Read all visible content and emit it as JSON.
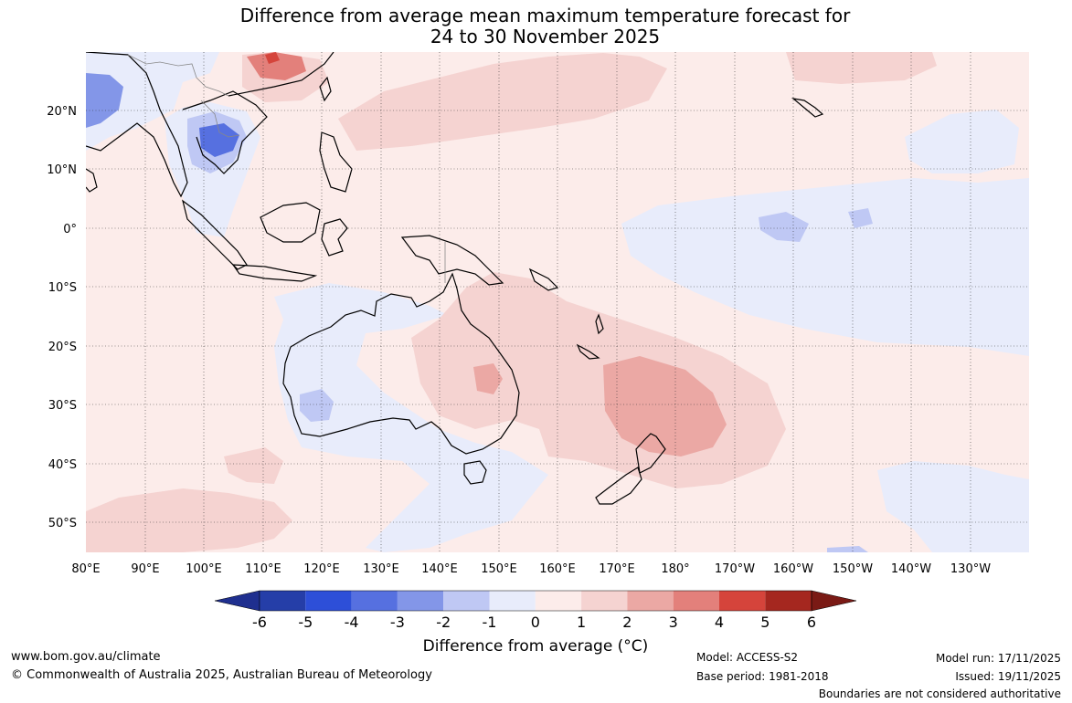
{
  "title_line1": "Difference from average mean maximum temperature forecast for",
  "title_line2": "24 to 30 November 2025",
  "map": {
    "lat_labels": [
      "20°N",
      "10°N",
      "0°",
      "10°S",
      "20°S",
      "30°S",
      "40°S",
      "50°S"
    ],
    "lon_labels": [
      "80°E",
      "90°E",
      "100°E",
      "110°E",
      "120°E",
      "130°E",
      "140°E",
      "150°E",
      "160°E",
      "170°E",
      "180°",
      "170°W",
      "160°W",
      "150°W",
      "140°W",
      "130°W"
    ],
    "background_color": "#fcecea",
    "coast_color": "#000000",
    "border_color": "#888888"
  },
  "colorbar": {
    "title": "Difference from average (°C)",
    "tick_labels": [
      "-6",
      "-5",
      "-4",
      "-3",
      "-2",
      "-1",
      "0",
      "1",
      "2",
      "3",
      "4",
      "5",
      "6"
    ],
    "colors": [
      "#1f2f8f",
      "#253ea8",
      "#2d4fd8",
      "#5670e0",
      "#8396e8",
      "#bfc8f4",
      "#e8ecfb",
      "#fcecea",
      "#f5d3d1",
      "#eba8a4",
      "#e3807b",
      "#d5443b",
      "#a5271f",
      "#7a1a15"
    ]
  },
  "footer": {
    "website": "www.bom.gov.au/climate",
    "copyright": "© Commonwealth of Australia 2025, Australian Bureau of Meteorology",
    "model": "Model: ACCESS-S2",
    "base_period": "Base period: 1981-2018",
    "model_run": "Model run: 17/11/2025",
    "issued": "Issued: 19/11/2025",
    "disclaimer": "Boundaries are not considered authoritative"
  }
}
